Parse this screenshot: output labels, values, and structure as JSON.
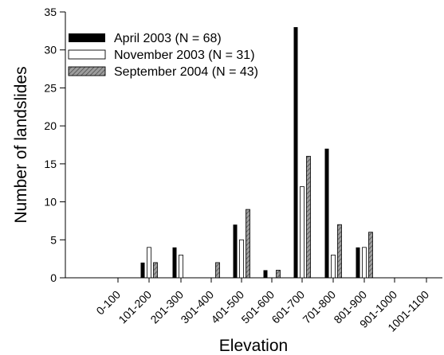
{
  "chart_data": {
    "type": "bar",
    "categories": [
      "0-100",
      "101-200",
      "201-300",
      "301-400",
      "401-500",
      "501-600",
      "601-700",
      "701-800",
      "801-900",
      "901-1000",
      "1001-1100"
    ],
    "series": [
      {
        "name": "April 2003 (N = 68)",
        "values": [
          0,
          2,
          4,
          0,
          7,
          1,
          33,
          17,
          4,
          0,
          0
        ],
        "style": "solid-black"
      },
      {
        "name": "November 2003 (N = 31)",
        "values": [
          0,
          4,
          3,
          0,
          5,
          0,
          12,
          3,
          4,
          0,
          0
        ],
        "style": "white-outline"
      },
      {
        "name": "September 2004 (N = 43)",
        "values": [
          0,
          2,
          0,
          2,
          9,
          1,
          16,
          7,
          6,
          0,
          0
        ],
        "style": "gray-hatched"
      }
    ],
    "xlabel": "Elevation",
    "ylabel": "Number of landslides",
    "ylim": [
      0,
      35
    ],
    "yticks": [
      0,
      5,
      10,
      15,
      20,
      25,
      30,
      35
    ],
    "grid": false,
    "legend_position": "top-left",
    "colors": {
      "solid_black": "#000000",
      "outline": "#000000",
      "hatch_bg": "#9d9d9d",
      "hatch_line": "#5c5c5c",
      "white_fill": "#ffffff"
    }
  }
}
